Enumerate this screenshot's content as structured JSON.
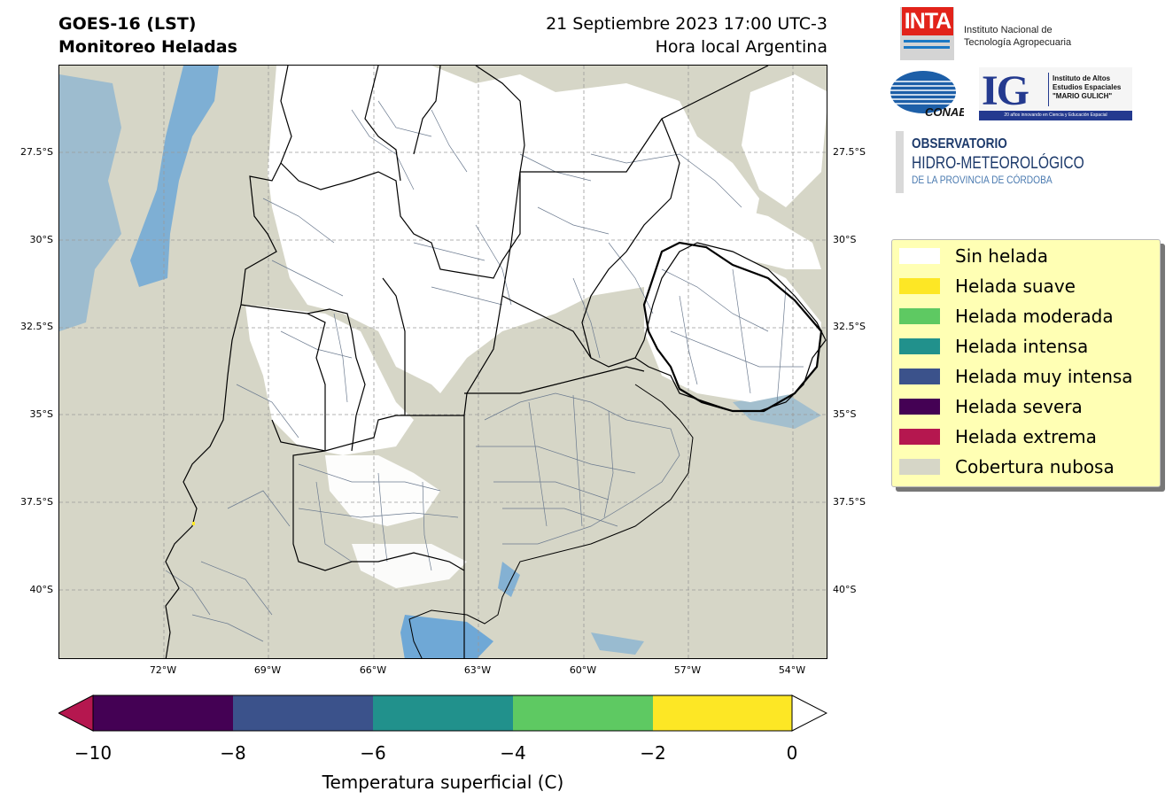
{
  "header": {
    "title_line1": "GOES-16 (LST)",
    "title_line2": "Monitoreo Heladas",
    "date_line1": "21 Septiembre 2023 17:00 UTC-3",
    "date_line2": "Hora local Argentina"
  },
  "map": {
    "lat_labels": [
      "27.5°S",
      "30°S",
      "32.5°S",
      "35°S",
      "37.5°S",
      "40°S"
    ],
    "lon_labels": [
      "72°W",
      "69°W",
      "66°W",
      "63°W",
      "60°W",
      "57°W",
      "54°W"
    ],
    "colors": {
      "cloud": "#d6d6c7",
      "no_frost": "#ffffff",
      "sea_ice": "#6fa8d6",
      "grid": "#888888"
    }
  },
  "colorbar": {
    "label": "Temperatura superficial (C)",
    "ticks": [
      "−10",
      "−8",
      "−6",
      "−4",
      "−2",
      "0"
    ],
    "segments": [
      "#440154",
      "#3b528b",
      "#21918c",
      "#5ec962",
      "#fde725"
    ],
    "under_color": "#b5174f",
    "over_color": "#ffffff"
  },
  "legend": {
    "items": [
      {
        "label": "Sin helada",
        "color": "#ffffff"
      },
      {
        "label": "Helada suave",
        "color": "#fde725"
      },
      {
        "label": "Helada moderada",
        "color": "#5ec962"
      },
      {
        "label": "Helada intensa",
        "color": "#21918c"
      },
      {
        "label": "Helada muy intensa",
        "color": "#3b528b"
      },
      {
        "label": "Helada severa",
        "color": "#440154"
      },
      {
        "label": "Helada extrema",
        "color": "#b5174f"
      },
      {
        "label": "Cobertura nubosa",
        "color": "#d6d6c7"
      }
    ]
  },
  "logos": {
    "inta_short": "INTA",
    "inta_name_1": "Instituto Nacional de",
    "inta_name_2": "Tecnología Agropecuaria",
    "conae": "CONAE",
    "ig_letters": "IG",
    "ig_name_1": "Instituto de Altos",
    "ig_name_2": "Estudios Espaciales",
    "ig_name_3": "\"MARIO GULICH\"",
    "ig_bar": "20 años innovando en Ciencia y Educación Espacial",
    "obs_1": "OBSERVATORIO",
    "obs_2": "HIDRO-METEOROLÓGICO",
    "obs_3": "DE LA PROVINCIA DE CÓRDOBA"
  }
}
